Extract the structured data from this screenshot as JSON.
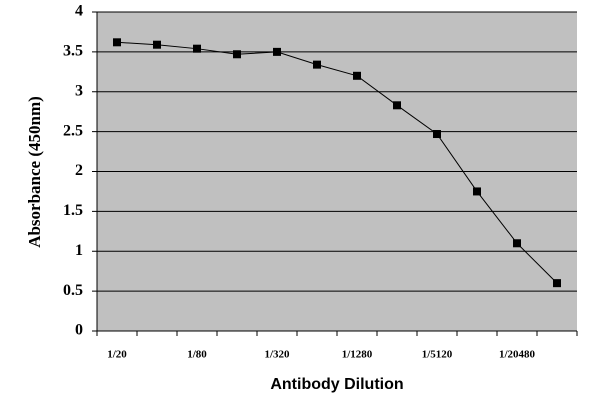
{
  "chart_data": {
    "type": "line",
    "x_label": "Antibody Dilution",
    "y_label": "Absorbance (450nm)",
    "categories": [
      "1/20",
      null,
      "1/80",
      null,
      "1/320",
      null,
      "1/1280",
      null,
      "1/5120",
      null,
      "1/20480",
      null
    ],
    "values": [
      3.62,
      3.59,
      3.54,
      3.47,
      3.5,
      3.34,
      3.2,
      2.83,
      2.47,
      1.75,
      1.1,
      0.6
    ],
    "color": "#000000",
    "background": "#c0c0c0",
    "ylim": [
      0,
      4
    ],
    "yticks": [
      0,
      0.5,
      1,
      1.5,
      2,
      2.5,
      3,
      3.5,
      4
    ],
    "grid": true
  }
}
